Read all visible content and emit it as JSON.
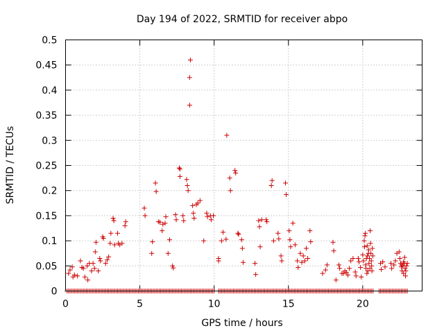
{
  "chart_data": {
    "type": "scatter",
    "title": "Day 194 of 2022, SRMTID for receiver abpo",
    "xlabel": "GPS time / hours",
    "ylabel": "SRMTID / TECUs",
    "xlim": [
      0,
      24
    ],
    "ylim": [
      0,
      0.5
    ],
    "x_ticks": [
      0,
      5,
      10,
      15,
      20
    ],
    "x_tick_labels": [
      "0",
      "5",
      "10",
      "15",
      "20"
    ],
    "y_ticks": [
      0,
      0.05,
      0.1,
      0.15,
      0.2,
      0.25,
      0.3,
      0.35,
      0.4,
      0.45,
      0.5
    ],
    "y_tick_labels": [
      "0",
      "0.05",
      "0.1",
      "0.15",
      "0.2",
      "0.25",
      "0.3",
      "0.35",
      "0.4",
      "0.45",
      "0.5"
    ],
    "grid": true,
    "marker": "plus",
    "marker_color": "#cc0000",
    "series": [
      {
        "name": "SRMTID",
        "points": [
          [
            0.2,
            0.035
          ],
          [
            0.3,
            0.042
          ],
          [
            0.45,
            0.048
          ],
          [
            0.5,
            0.028
          ],
          [
            0.6,
            0.032
          ],
          [
            0.8,
            0.03
          ],
          [
            1.0,
            0.06
          ],
          [
            1.1,
            0.047
          ],
          [
            1.2,
            0.045
          ],
          [
            1.3,
            0.028
          ],
          [
            1.45,
            0.05
          ],
          [
            1.5,
            0.022
          ],
          [
            1.6,
            0.055
          ],
          [
            1.75,
            0.04
          ],
          [
            1.85,
            0.055
          ],
          [
            1.95,
            0.045
          ],
          [
            2.0,
            0.078
          ],
          [
            2.05,
            0.097
          ],
          [
            2.2,
            0.04
          ],
          [
            2.3,
            0.065
          ],
          [
            2.35,
            0.06
          ],
          [
            2.5,
            0.108
          ],
          [
            2.55,
            0.105
          ],
          [
            2.7,
            0.055
          ],
          [
            2.8,
            0.062
          ],
          [
            2.9,
            0.068
          ],
          [
            3.0,
            0.095
          ],
          [
            3.05,
            0.115
          ],
          [
            3.2,
            0.145
          ],
          [
            3.25,
            0.14
          ],
          [
            3.3,
            0.092
          ],
          [
            3.5,
            0.115
          ],
          [
            3.55,
            0.095
          ],
          [
            3.65,
            0.092
          ],
          [
            3.8,
            0.095
          ],
          [
            4.0,
            0.13
          ],
          [
            4.05,
            0.138
          ],
          [
            5.3,
            0.165
          ],
          [
            5.35,
            0.15
          ],
          [
            5.8,
            0.075
          ],
          [
            5.85,
            0.098
          ],
          [
            6.05,
            0.215
          ],
          [
            6.1,
            0.198
          ],
          [
            6.25,
            0.138
          ],
          [
            6.35,
            0.137
          ],
          [
            6.5,
            0.12
          ],
          [
            6.55,
            0.133
          ],
          [
            6.7,
            0.135
          ],
          [
            6.75,
            0.148
          ],
          [
            6.9,
            0.075
          ],
          [
            7.0,
            0.102
          ],
          [
            7.2,
            0.05
          ],
          [
            7.25,
            0.046
          ],
          [
            7.4,
            0.152
          ],
          [
            7.45,
            0.142
          ],
          [
            7.65,
            0.245
          ],
          [
            7.7,
            0.243
          ],
          [
            7.7,
            0.228
          ],
          [
            7.9,
            0.15
          ],
          [
            7.95,
            0.14
          ],
          [
            8.15,
            0.222
          ],
          [
            8.2,
            0.21
          ],
          [
            8.25,
            0.2
          ],
          [
            8.4,
            0.46
          ],
          [
            8.35,
            0.425
          ],
          [
            8.35,
            0.37
          ],
          [
            8.55,
            0.17
          ],
          [
            8.6,
            0.155
          ],
          [
            8.65,
            0.145
          ],
          [
            8.8,
            0.172
          ],
          [
            8.9,
            0.175
          ],
          [
            9.05,
            0.18
          ],
          [
            9.3,
            0.1
          ],
          [
            9.5,
            0.155
          ],
          [
            9.55,
            0.148
          ],
          [
            9.75,
            0.15
          ],
          [
            9.8,
            0.142
          ],
          [
            9.95,
            0.15
          ],
          [
            10.3,
            0.065
          ],
          [
            10.3,
            0.06
          ],
          [
            10.6,
            0.117
          ],
          [
            10.5,
            0.1
          ],
          [
            10.8,
            0.103
          ],
          [
            10.85,
            0.31
          ],
          [
            11.05,
            0.225
          ],
          [
            11.1,
            0.2
          ],
          [
            11.4,
            0.24
          ],
          [
            11.45,
            0.235
          ],
          [
            11.6,
            0.115
          ],
          [
            11.65,
            0.113
          ],
          [
            11.85,
            0.102
          ],
          [
            11.9,
            0.085
          ],
          [
            11.95,
            0.057
          ],
          [
            12.75,
            0.055
          ],
          [
            12.8,
            0.033
          ],
          [
            13.0,
            0.14
          ],
          [
            13.05,
            0.128
          ],
          [
            13.1,
            0.088
          ],
          [
            13.2,
            0.142
          ],
          [
            13.5,
            0.142
          ],
          [
            13.55,
            0.138
          ],
          [
            13.9,
            0.22
          ],
          [
            13.85,
            0.21
          ],
          [
            14.0,
            0.1
          ],
          [
            14.3,
            0.115
          ],
          [
            14.35,
            0.104
          ],
          [
            14.5,
            0.07
          ],
          [
            14.55,
            0.06
          ],
          [
            14.8,
            0.215
          ],
          [
            14.85,
            0.192
          ],
          [
            15.05,
            0.12
          ],
          [
            15.1,
            0.102
          ],
          [
            15.15,
            0.088
          ],
          [
            15.3,
            0.135
          ],
          [
            15.45,
            0.092
          ],
          [
            15.6,
            0.06
          ],
          [
            15.65,
            0.047
          ],
          [
            15.8,
            0.075
          ],
          [
            15.9,
            0.057
          ],
          [
            16.0,
            0.07
          ],
          [
            16.1,
            0.06
          ],
          [
            16.2,
            0.085
          ],
          [
            16.3,
            0.065
          ],
          [
            16.45,
            0.12
          ],
          [
            16.5,
            0.098
          ],
          [
            17.3,
            0.035
          ],
          [
            17.5,
            0.042
          ],
          [
            17.6,
            0.052
          ],
          [
            18.0,
            0.097
          ],
          [
            18.05,
            0.08
          ],
          [
            18.2,
            0.022
          ],
          [
            18.4,
            0.052
          ],
          [
            18.45,
            0.045
          ],
          [
            18.6,
            0.035
          ],
          [
            18.7,
            0.035
          ],
          [
            18.8,
            0.04
          ],
          [
            18.9,
            0.037
          ],
          [
            19.0,
            0.032
          ],
          [
            19.1,
            0.045
          ],
          [
            19.2,
            0.06
          ],
          [
            19.35,
            0.065
          ],
          [
            19.5,
            0.038
          ],
          [
            19.55,
            0.03
          ],
          [
            19.7,
            0.065
          ],
          [
            19.75,
            0.058
          ],
          [
            19.85,
            0.047
          ],
          [
            19.9,
            0.028
          ],
          [
            20.0,
            0.072
          ],
          [
            20.05,
            0.06
          ],
          [
            20.1,
            0.1
          ],
          [
            20.12,
            0.088
          ],
          [
            20.15,
            0.11
          ],
          [
            20.18,
            0.115
          ],
          [
            20.2,
            0.052
          ],
          [
            20.22,
            0.045
          ],
          [
            20.25,
            0.065
          ],
          [
            20.28,
            0.035
          ],
          [
            20.3,
            0.09
          ],
          [
            20.32,
            0.07
          ],
          [
            20.35,
            0.04
          ],
          [
            20.38,
            0.075
          ],
          [
            20.4,
            0.082
          ],
          [
            20.42,
            0.055
          ],
          [
            20.45,
            0.065
          ],
          [
            20.48,
            0.045
          ],
          [
            20.5,
            0.12
          ],
          [
            20.52,
            0.095
          ],
          [
            20.55,
            0.075
          ],
          [
            20.58,
            0.06
          ],
          [
            20.6,
            0.05
          ],
          [
            20.62,
            0.04
          ],
          [
            20.65,
            0.085
          ],
          [
            20.68,
            0.07
          ],
          [
            21.2,
            0.055
          ],
          [
            21.25,
            0.043
          ],
          [
            21.35,
            0.058
          ],
          [
            21.5,
            0.048
          ],
          [
            21.9,
            0.055
          ],
          [
            21.95,
            0.045
          ],
          [
            22.1,
            0.052
          ],
          [
            22.2,
            0.06
          ],
          [
            22.3,
            0.075
          ],
          [
            22.45,
            0.078
          ],
          [
            22.5,
            0.065
          ],
          [
            22.55,
            0.055
          ],
          [
            22.6,
            0.048
          ],
          [
            22.65,
            0.04
          ],
          [
            22.7,
            0.05
          ],
          [
            22.75,
            0.035
          ],
          [
            22.8,
            0.055
          ],
          [
            22.85,
            0.045
          ],
          [
            22.9,
            0.04
          ],
          [
            22.95,
            0.05
          ],
          [
            23.0,
            0.055
          ],
          [
            22.82,
            0.067
          ],
          [
            22.88,
            0.03
          ],
          [
            22.75,
            0.058
          ],
          [
            22.62,
            0.052
          ]
        ],
        "zero_points_x_ranges": [
          [
            0.1,
            10.0
          ],
          [
            10.3,
            20.7
          ],
          [
            21.1,
            23.0
          ]
        ],
        "zero_points_step": 0.1
      }
    ]
  }
}
